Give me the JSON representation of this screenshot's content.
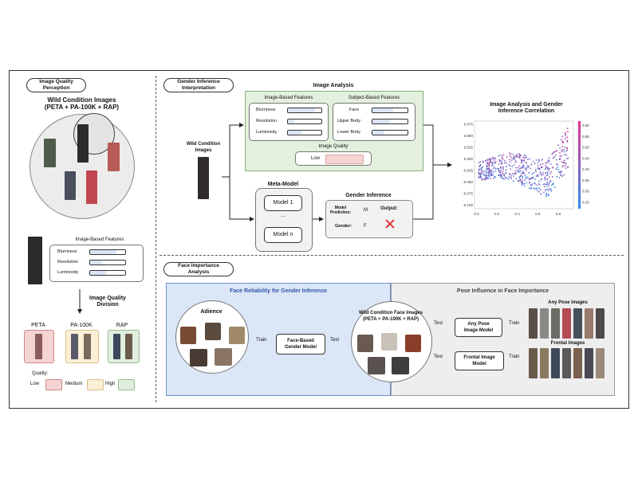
{
  "left_panel": {
    "title": "Image Quality\nPerception",
    "wild_title": "Wild Condition Images\n(PETA + PA-100K + RAP)",
    "features_title": "Image-Based Features",
    "features": [
      {
        "label": "Blurriness",
        "level": 0.75
      },
      {
        "label": "Resolution",
        "level": 0.35
      },
      {
        "label": "Luminosity",
        "level": 0.45
      }
    ],
    "division_title": "Image Quality\nDivision",
    "datasets": [
      {
        "label": "PETA",
        "color": "#f6d3d3"
      },
      {
        "label": "PA-100K",
        "color": "#fbefd6"
      },
      {
        "label": "RAP",
        "color": "#dfeedd"
      }
    ],
    "quality_title": "Quality:",
    "quality_levels": [
      {
        "label": "Low",
        "color": "#f6d3d3"
      },
      {
        "label": "Medium",
        "color": "#fbefd6"
      },
      {
        "label": "High",
        "color": "#dfeedd"
      }
    ]
  },
  "gender_panel": {
    "title": "Gender Inference\nInterpretation",
    "wild_label": "Wild Condition\nImages",
    "analysis_title": "Image Analysis",
    "image_features_title": "Image-Based Features",
    "image_features": [
      {
        "label": "Blurriness",
        "level": 0.82
      },
      {
        "label": "Resolution",
        "level": 0.2
      },
      {
        "label": "Luminosity",
        "level": 0.4
      }
    ],
    "subject_features_title": "Subject-Based Features",
    "subject_features": [
      {
        "label": "Face",
        "level": 0.6
      },
      {
        "label": "Upper Body",
        "level": 0.5
      },
      {
        "label": "Lower Body",
        "level": 0.35
      }
    ],
    "quality_title": "Image Quality",
    "quality_value": "Low",
    "meta_title": "Meta-Model",
    "model_1": "Model 1",
    "ellipsis": "...",
    "model_n": "Model n",
    "inference_title": "Gender Inference",
    "prediction_label": "Model\nPrediction:",
    "prediction_value": "M",
    "output_label": "Output:",
    "gender_label": "Gender:",
    "gender_value": "F",
    "colors": {
      "analysis_bg": "#e3f0dd",
      "analysis_border": "#86b07a",
      "quality_fill": "#f6d3d3",
      "wrong": "#e03b3b"
    }
  },
  "correlation": {
    "title": "Image Analysis and Gender\nInference Correlation",
    "chart_data": {
      "type": "scatter",
      "x_ticks": [
        "0.0",
        "0.2",
        "0.4",
        "0.6",
        "0.8"
      ],
      "y_ticks": [
        "0.075",
        "0.050",
        "0.025",
        "0.000",
        "-0.025",
        "-0.050",
        "-0.075",
        "-0.100"
      ],
      "xlim": [
        -0.02,
        0.95
      ],
      "ylim": [
        -0.108,
        0.082
      ],
      "colorbar_ticks": [
        "0.60",
        "0.55",
        "0.50",
        "0.45",
        "0.40",
        "0.35",
        "0.30",
        "0.25"
      ],
      "colorbar_range": [
        0.22,
        0.62
      ],
      "colormap": [
        "#2f8bf0",
        "#e8308a"
      ],
      "grid": false
    }
  },
  "face_panel": {
    "title": "Face Importance\nAnalysis",
    "reliability_title": "Face Reliability for Gender Inference",
    "pose_title": "Pose Influence in Face Importance",
    "adience_label": "Adience",
    "train_1": "Train",
    "face_model": "Face-Based\nGender Model",
    "test_1": "Test",
    "wild_faces": "Wild Condition Face Images\n(PETA + PA-100K + RAP)",
    "test_2": "Test",
    "any_pose_model": "Any Pose\nImage Model",
    "train_2": "Train",
    "any_pose_images": "Any Pose Images",
    "test_3": "Test",
    "frontal_model": "Frontal Image\nModel",
    "train_3": "Train",
    "frontal_images": "Frontal Images",
    "colors": {
      "reliability_bg": "#dbe6f7",
      "pose_bg": "#eeeeee"
    }
  }
}
